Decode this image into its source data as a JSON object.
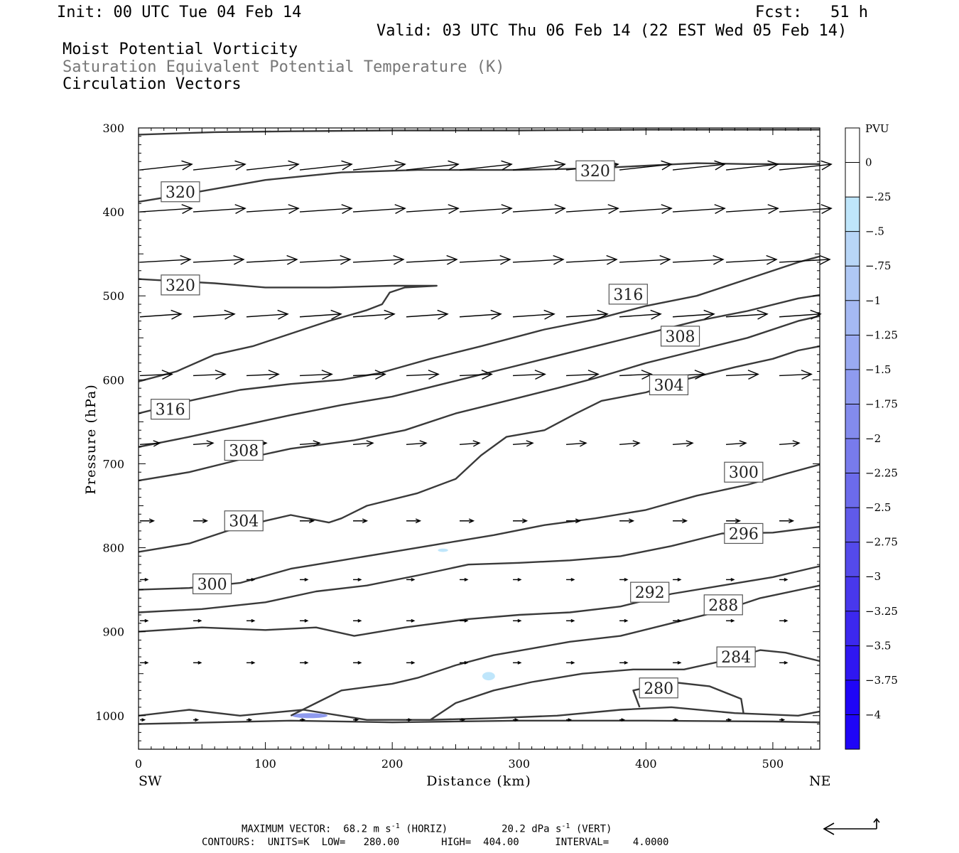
{
  "header": {
    "init": "Init: 00 UTC Tue 04 Feb 14",
    "fcst": "Fcst:   51 h",
    "valid": "Valid: 03 UTC Thu 06 Feb 14 (22 EST Wed 05 Feb 14)",
    "field1": "Moist Potential Vorticity",
    "field2": "Saturation Equivalent Potential Temperature (K)",
    "field3": "Circulation Vectors"
  },
  "footer": {
    "max_vector_label": "MAXIMUM VECTOR:",
    "horiz_value": "68.2 m s",
    "horiz_exp": "-1",
    "horiz_unit": "(HORIZ)",
    "vert_value": "20.2 dPa s",
    "vert_exp": "-1",
    "vert_unit": "(VERT)",
    "contours": "CONTOURS:  UNITS=K  LOW=   280.00       HIGH=  404.00      INTERVAL=    4.0000"
  },
  "chart_data": {
    "type": "cross-section",
    "xlabel": "Distance (km)",
    "ylabel": "Pressure (hPa)",
    "x_left_label": "SW",
    "x_right_label": "NE",
    "xlim": [
      0,
      537
    ],
    "ylim": [
      1040,
      300
    ],
    "x_ticks": [
      0,
      100,
      200,
      300,
      400,
      500
    ],
    "y_ticks": [
      300,
      400,
      500,
      600,
      700,
      800,
      900,
      1000
    ],
    "colorbar": {
      "title": "PVU",
      "labels": [
        "0",
        "-.25",
        "-.5",
        "-.75",
        "-1",
        "-1.25",
        "-1.5",
        "-1.75",
        "-2",
        "-2.25",
        "-2.5",
        "-2.75",
        "-3",
        "-3.25",
        "-3.5",
        "-3.75",
        "-4"
      ],
      "colors": [
        "#ffffff",
        "#ffffff",
        "#bfe6fb",
        "#b8d6f7",
        "#afc8f5",
        "#a5b9f3",
        "#9aaaf1",
        "#8f9bef",
        "#838bed",
        "#787bec",
        "#6c6beb",
        "#605ae9",
        "#544aea",
        "#4838ec",
        "#3c28ee",
        "#2f17f1",
        "#1f05f7"
      ]
    },
    "theta_contours": [
      {
        "label": "320",
        "points": [
          [
            0,
            388
          ],
          [
            40,
            378
          ],
          [
            100,
            362
          ],
          [
            160,
            353
          ],
          [
            220,
            350
          ],
          [
            300,
            350
          ],
          [
            360,
            348
          ],
          [
            400,
            345
          ],
          [
            440,
            342
          ],
          [
            480,
            343
          ],
          [
            537,
            343
          ]
        ]
      },
      {
        "label": "320",
        "points": [
          [
            0,
            480
          ],
          [
            60,
            485
          ],
          [
            100,
            490
          ],
          [
            150,
            490
          ],
          [
            200,
            488
          ],
          [
            235,
            488
          ],
          [
            210,
            490
          ],
          [
            198,
            496
          ],
          [
            192,
            510
          ],
          [
            180,
            517
          ],
          [
            150,
            530
          ],
          [
            120,
            545
          ],
          [
            90,
            560
          ],
          [
            60,
            570
          ],
          [
            30,
            590
          ],
          [
            0,
            602
          ]
        ]
      },
      {
        "label": "316",
        "points": [
          [
            0,
            640
          ],
          [
            40,
            625
          ],
          [
            80,
            612
          ],
          [
            120,
            605
          ],
          [
            160,
            600
          ],
          [
            190,
            592
          ],
          [
            230,
            575
          ],
          [
            270,
            560
          ],
          [
            320,
            540
          ],
          [
            360,
            528
          ],
          [
            400,
            512
          ],
          [
            440,
            500
          ],
          [
            480,
            480
          ],
          [
            520,
            460
          ],
          [
            537,
            453
          ]
        ]
      },
      {
        "label": "308",
        "points": [
          [
            0,
            680
          ],
          [
            40,
            668
          ],
          [
            80,
            655
          ],
          [
            120,
            642
          ],
          [
            160,
            630
          ],
          [
            200,
            620
          ],
          [
            240,
            605
          ],
          [
            280,
            590
          ],
          [
            320,
            575
          ],
          [
            360,
            560
          ],
          [
            400,
            545
          ],
          [
            440,
            530
          ],
          [
            480,
            518
          ],
          [
            520,
            503
          ],
          [
            537,
            499
          ]
        ]
      },
      {
        "label": "308",
        "points": [
          [
            0,
            720
          ],
          [
            40,
            710
          ],
          [
            80,
            695
          ],
          [
            120,
            682
          ],
          [
            170,
            672
          ],
          [
            210,
            660
          ],
          [
            250,
            640
          ],
          [
            290,
            625
          ],
          [
            330,
            610
          ],
          [
            360,
            598
          ],
          [
            400,
            580
          ],
          [
            440,
            565
          ],
          [
            480,
            550
          ],
          [
            520,
            530
          ],
          [
            537,
            524
          ]
        ]
      },
      {
        "label": "304",
        "points": [
          [
            0,
            805
          ],
          [
            40,
            795
          ],
          [
            70,
            780
          ],
          [
            100,
            768
          ],
          [
            120,
            761
          ],
          [
            150,
            770
          ],
          [
            160,
            765
          ],
          [
            180,
            750
          ],
          [
            220,
            735
          ],
          [
            250,
            718
          ],
          [
            270,
            690
          ],
          [
            290,
            668
          ],
          [
            320,
            660
          ],
          [
            345,
            640
          ],
          [
            365,
            625
          ],
          [
            400,
            615
          ],
          [
            430,
            600
          ],
          [
            470,
            585
          ],
          [
            500,
            575
          ],
          [
            520,
            565
          ],
          [
            537,
            560
          ]
        ]
      },
      {
        "label": "300",
        "points": [
          [
            0,
            850
          ],
          [
            40,
            848
          ],
          [
            80,
            842
          ],
          [
            120,
            825
          ],
          [
            160,
            815
          ],
          [
            200,
            805
          ],
          [
            240,
            795
          ],
          [
            280,
            785
          ],
          [
            320,
            773
          ],
          [
            360,
            765
          ],
          [
            400,
            755
          ],
          [
            440,
            738
          ],
          [
            480,
            725
          ],
          [
            510,
            712
          ],
          [
            537,
            701
          ]
        ]
      },
      {
        "label": "296",
        "points": [
          [
            0,
            877
          ],
          [
            50,
            873
          ],
          [
            100,
            865
          ],
          [
            140,
            852
          ],
          [
            180,
            845
          ],
          [
            220,
            833
          ],
          [
            260,
            820
          ],
          [
            300,
            818
          ],
          [
            340,
            815
          ],
          [
            380,
            810
          ],
          [
            420,
            798
          ],
          [
            460,
            783
          ],
          [
            500,
            782
          ],
          [
            537,
            775
          ]
        ]
      },
      {
        "label": "292",
        "points": [
          [
            0,
            900
          ],
          [
            50,
            895
          ],
          [
            100,
            898
          ],
          [
            140,
            895
          ],
          [
            170,
            905
          ],
          [
            210,
            895
          ],
          [
            260,
            885
          ],
          [
            300,
            880
          ],
          [
            340,
            877
          ],
          [
            380,
            870
          ],
          [
            420,
            855
          ],
          [
            460,
            845
          ],
          [
            500,
            835
          ],
          [
            537,
            822
          ]
        ]
      },
      {
        "label": "288",
        "points": [
          [
            120,
            1000
          ],
          [
            140,
            985
          ],
          [
            160,
            970
          ],
          [
            200,
            962
          ],
          [
            220,
            955
          ],
          [
            250,
            940
          ],
          [
            280,
            928
          ],
          [
            310,
            920
          ],
          [
            340,
            912
          ],
          [
            380,
            905
          ],
          [
            420,
            890
          ],
          [
            460,
            875
          ],
          [
            490,
            860
          ],
          [
            537,
            845
          ]
        ]
      },
      {
        "label": "284",
        "points": [
          [
            230,
            1005
          ],
          [
            250,
            985
          ],
          [
            280,
            970
          ],
          [
            310,
            960
          ],
          [
            350,
            950
          ],
          [
            390,
            945
          ],
          [
            430,
            945
          ],
          [
            460,
            935
          ],
          [
            490,
            922
          ],
          [
            510,
            925
          ],
          [
            537,
            935
          ]
        ]
      },
      {
        "label": "280",
        "points": [
          [
            395,
            990
          ],
          [
            390,
            970
          ],
          [
            420,
            960
          ],
          [
            450,
            965
          ],
          [
            475,
            980
          ],
          [
            477,
            998
          ]
        ]
      },
      {
        "label": "",
        "points": [
          [
            0,
            308
          ],
          [
            60,
            305
          ],
          [
            120,
            304
          ],
          [
            200,
            303
          ],
          [
            300,
            303
          ],
          [
            400,
            302
          ],
          [
            500,
            302
          ],
          [
            537,
            302
          ]
        ]
      },
      {
        "label": "",
        "points": [
          [
            0,
            1000
          ],
          [
            40,
            993
          ],
          [
            80,
            1000
          ],
          [
            130,
            993
          ],
          [
            180,
            1005
          ],
          [
            230,
            1005
          ],
          [
            280,
            1003
          ],
          [
            330,
            1000
          ],
          [
            380,
            993
          ],
          [
            420,
            990
          ],
          [
            470,
            997
          ],
          [
            520,
            1000
          ],
          [
            537,
            995
          ]
        ]
      },
      {
        "label": "",
        "points": [
          [
            0,
            1010
          ],
          [
            60,
            1008
          ],
          [
            120,
            1006
          ],
          [
            200,
            1008
          ],
          [
            300,
            1006
          ],
          [
            400,
            1006
          ],
          [
            500,
            1007
          ],
          [
            537,
            1008
          ]
        ]
      }
    ],
    "theta_labels": [
      {
        "text": "320",
        "x": 33,
        "p": 376
      },
      {
        "text": "320",
        "x": 360,
        "p": 351
      },
      {
        "text": "320",
        "x": 33,
        "p": 487
      },
      {
        "text": "316",
        "x": 386,
        "p": 498
      },
      {
        "text": "308",
        "x": 427,
        "p": 548
      },
      {
        "text": "304",
        "x": 418,
        "p": 606
      },
      {
        "text": "316",
        "x": 25,
        "p": 635
      },
      {
        "text": "308",
        "x": 83,
        "p": 684
      },
      {
        "text": "304",
        "x": 83,
        "p": 768
      },
      {
        "text": "300",
        "x": 477,
        "p": 710
      },
      {
        "text": "296",
        "x": 477,
        "p": 783
      },
      {
        "text": "300",
        "x": 58,
        "p": 843
      },
      {
        "text": "292",
        "x": 403,
        "p": 853
      },
      {
        "text": "288",
        "x": 461,
        "p": 868
      },
      {
        "text": "284",
        "x": 471,
        "p": 930
      },
      {
        "text": "280",
        "x": 410,
        "p": 967
      }
    ],
    "pv_patches": [
      {
        "x": 135,
        "p": 1000,
        "rx": 14,
        "rp": 3,
        "value": -1.5
      },
      {
        "x": 276,
        "p": 953,
        "rx": 5,
        "rp": 5,
        "value": -0.25
      },
      {
        "x": 240,
        "p": 803,
        "rx": 4,
        "rp": 2,
        "value": -0.25
      }
    ],
    "vector_levels": [
      {
        "p": 350,
        "u": 34,
        "w": -8
      },
      {
        "p": 400,
        "u": 34,
        "w": -5
      },
      {
        "p": 460,
        "u": 33,
        "w": -4
      },
      {
        "p": 525,
        "u": 27,
        "w": -4
      },
      {
        "p": 595,
        "u": 21,
        "w": -2
      },
      {
        "p": 677,
        "u": 13,
        "w": -2
      },
      {
        "p": 768,
        "u": 9,
        "w": 0
      },
      {
        "p": 838,
        "u": 5,
        "w": 0
      },
      {
        "p": 887,
        "u": 5,
        "w": 0
      },
      {
        "p": 937,
        "u": 5,
        "w": 0
      },
      {
        "p": 1005,
        "u": 3,
        "w": 0
      }
    ],
    "vector_x": [
      0,
      42,
      84,
      126,
      168,
      210,
      252,
      294,
      336,
      378,
      420,
      462,
      504
    ],
    "reference_vector": {
      "u": 68.2,
      "w": 20.2
    }
  }
}
